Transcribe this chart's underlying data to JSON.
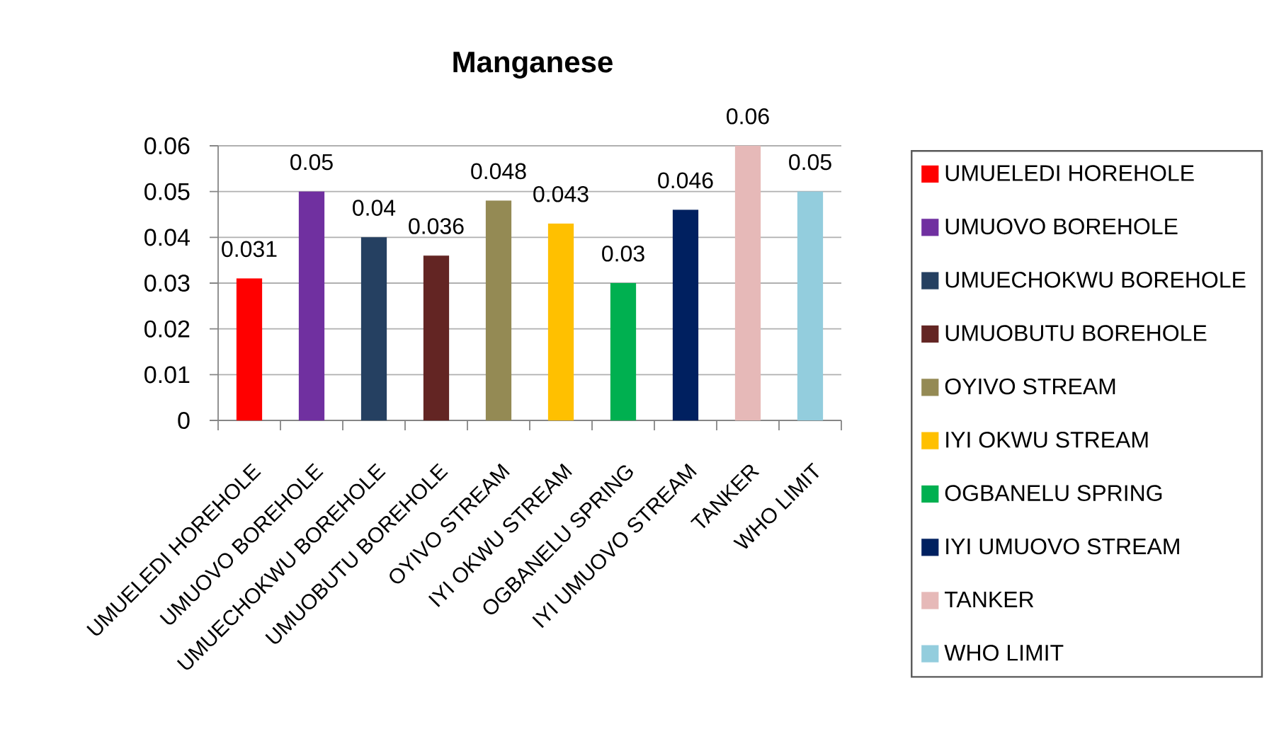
{
  "chart_data": {
    "type": "bar",
    "title": "Manganese",
    "stacked": true,
    "categories": [
      "UMUELEDI HOREHOLE",
      "UMUOVO BOREHOLE",
      "UMUECHOKWU BOREHOLE",
      "UMUOBUTU BOREHOLE",
      "OYIVO STREAM",
      "IYI OKWU STREAM",
      "OGBANELU SPRING",
      "IYI UMUOVO STREAM",
      "TANKER",
      "WHO LIMIT"
    ],
    "series": [
      {
        "name": "UMUELEDI HOREHOLE",
        "color": "#ff0000",
        "values": [
          0.031,
          null,
          null,
          null,
          null,
          null,
          null,
          null,
          null,
          null
        ]
      },
      {
        "name": "UMUOVO BOREHOLE",
        "color": "#7030a0",
        "values": [
          null,
          0.05,
          null,
          null,
          null,
          null,
          null,
          null,
          null,
          null
        ]
      },
      {
        "name": "UMUECHOKWU BOREHOLE",
        "color": "#254061",
        "values": [
          null,
          null,
          0.04,
          null,
          null,
          null,
          null,
          null,
          null,
          null
        ]
      },
      {
        "name": "UMUOBUTU BOREHOLE",
        "color": "#632523",
        "values": [
          null,
          null,
          null,
          0.036,
          null,
          null,
          null,
          null,
          null,
          null
        ]
      },
      {
        "name": "OYIVO STREAM",
        "color": "#948a54",
        "values": [
          null,
          null,
          null,
          null,
          0.048,
          null,
          null,
          null,
          null,
          null
        ]
      },
      {
        "name": "IYI OKWU STREAM",
        "color": "#ffc000",
        "values": [
          null,
          null,
          null,
          null,
          null,
          0.043,
          null,
          null,
          null,
          null
        ]
      },
      {
        "name": "OGBANELU SPRING",
        "color": "#00b050",
        "values": [
          null,
          null,
          null,
          null,
          null,
          null,
          0.03,
          null,
          null,
          null
        ]
      },
      {
        "name": "IYI UMUOVO STREAM",
        "color": "#002060",
        "values": [
          null,
          null,
          null,
          null,
          null,
          null,
          null,
          0.046,
          null,
          null
        ]
      },
      {
        "name": "TANKER",
        "color": "#e6b9b8",
        "values": [
          null,
          null,
          null,
          null,
          null,
          null,
          null,
          null,
          0.06,
          null
        ]
      },
      {
        "name": "WHO LIMIT",
        "color": "#93cddd",
        "values": [
          null,
          null,
          null,
          null,
          null,
          null,
          null,
          null,
          null,
          0.05
        ]
      }
    ],
    "ylim": [
      0,
      0.06
    ],
    "yticks": [
      0,
      0.01,
      0.02,
      0.03,
      0.04,
      0.05,
      0.06
    ],
    "grid": "y",
    "legend": "right",
    "data_labels": true
  }
}
